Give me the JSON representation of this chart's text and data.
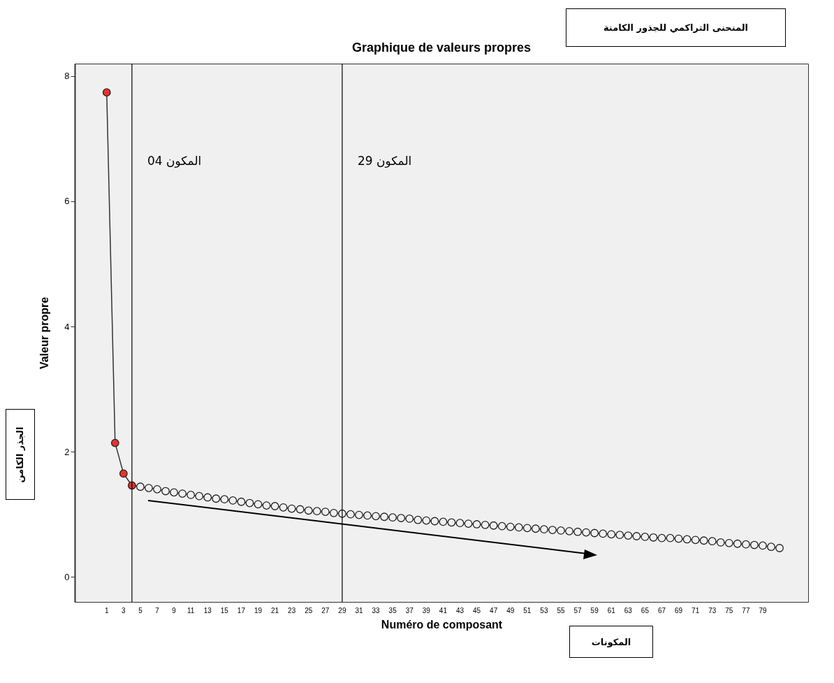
{
  "chart_data": {
    "type": "line",
    "title": "Graphique de valeurs propres",
    "xlabel": "Numéro de composant",
    "ylabel": "Valeur propre",
    "x": [
      1,
      2,
      3,
      4,
      5,
      6,
      7,
      8,
      9,
      10,
      11,
      12,
      13,
      14,
      15,
      16,
      17,
      18,
      19,
      20,
      21,
      22,
      23,
      24,
      25,
      26,
      27,
      28,
      29,
      30,
      31,
      32,
      33,
      34,
      35,
      36,
      37,
      38,
      39,
      40,
      41,
      42,
      43,
      44,
      45,
      46,
      47,
      48,
      49,
      50,
      51,
      52,
      53,
      54,
      55,
      56,
      57,
      58,
      59,
      60,
      61,
      62,
      63,
      64,
      65,
      66,
      67,
      68,
      69,
      70,
      71,
      72,
      73,
      74,
      75,
      76,
      77,
      78,
      79,
      80,
      81
    ],
    "series": [
      {
        "color": "#333333",
        "colors": [
          "#e8312a",
          "#e8312a",
          "#e8312a",
          "#e8312a",
          "#f0f0f0",
          "#f0f0f0",
          "#f0f0f0",
          "#f0f0f0",
          "#f0f0f0",
          "#f0f0f0",
          "#f0f0f0",
          "#f0f0f0",
          "#f0f0f0",
          "#f0f0f0",
          "#f0f0f0",
          "#f0f0f0",
          "#f0f0f0",
          "#f0f0f0",
          "#f0f0f0",
          "#f0f0f0",
          "#f0f0f0",
          "#f0f0f0",
          "#f0f0f0",
          "#f0f0f0",
          "#f0f0f0",
          "#f0f0f0",
          "#f0f0f0",
          "#f0f0f0",
          "#f0f0f0",
          "#f0f0f0",
          "#f0f0f0",
          "#f0f0f0",
          "#f0f0f0",
          "#f0f0f0",
          "#f0f0f0",
          "#f0f0f0",
          "#f0f0f0",
          "#f0f0f0",
          "#f0f0f0",
          "#f0f0f0",
          "#f0f0f0",
          "#f0f0f0",
          "#f0f0f0",
          "#f0f0f0",
          "#f0f0f0",
          "#f0f0f0",
          "#f0f0f0",
          "#f0f0f0",
          "#f0f0f0",
          "#f0f0f0",
          "#f0f0f0",
          "#f0f0f0",
          "#f0f0f0",
          "#f0f0f0",
          "#f0f0f0",
          "#f0f0f0",
          "#f0f0f0",
          "#f0f0f0",
          "#f0f0f0",
          "#f0f0f0",
          "#f0f0f0",
          "#f0f0f0",
          "#f0f0f0",
          "#f0f0f0",
          "#f0f0f0",
          "#f0f0f0",
          "#f0f0f0",
          "#f0f0f0",
          "#f0f0f0",
          "#f0f0f0",
          "#f0f0f0",
          "#f0f0f0",
          "#f0f0f0",
          "#f0f0f0",
          "#f0f0f0",
          "#f0f0f0",
          "#f0f0f0",
          "#f0f0f0",
          "#f0f0f0",
          "#f0f0f0",
          "#f0f0f0"
        ],
        "values": [
          7.74,
          2.14,
          1.65,
          1.46,
          1.44,
          1.42,
          1.4,
          1.37,
          1.35,
          1.33,
          1.31,
          1.29,
          1.27,
          1.25,
          1.24,
          1.22,
          1.2,
          1.18,
          1.16,
          1.14,
          1.13,
          1.11,
          1.09,
          1.08,
          1.06,
          1.05,
          1.04,
          1.02,
          1.01,
          1.0,
          0.99,
          0.98,
          0.97,
          0.96,
          0.95,
          0.94,
          0.93,
          0.91,
          0.9,
          0.89,
          0.88,
          0.87,
          0.86,
          0.85,
          0.84,
          0.83,
          0.82,
          0.81,
          0.8,
          0.79,
          0.78,
          0.77,
          0.76,
          0.75,
          0.74,
          0.73,
          0.72,
          0.71,
          0.7,
          0.69,
          0.68,
          0.67,
          0.66,
          0.65,
          0.64,
          0.63,
          0.62,
          0.62,
          0.61,
          0.6,
          0.59,
          0.58,
          0.57,
          0.55,
          0.54,
          0.53,
          0.52,
          0.51,
          0.5,
          0.48,
          0.46
        ]
      }
    ],
    "xlim": [
      -2.8,
      84.4
    ],
    "xticks": [
      1,
      3,
      5,
      7,
      9,
      11,
      13,
      15,
      17,
      19,
      21,
      23,
      25,
      27,
      29,
      31,
      33,
      35,
      37,
      39,
      41,
      43,
      45,
      47,
      49,
      51,
      53,
      55,
      57,
      59,
      61,
      63,
      65,
      67,
      69,
      71,
      73,
      75,
      77,
      79
    ],
    "ylim": [
      -0.4,
      8.2
    ],
    "yticks": [
      0,
      2,
      4,
      6,
      8
    ],
    "marker": "circle",
    "grid": false,
    "ref_lines": [
      {
        "axis": "x",
        "value": 4,
        "label": "المكون 04",
        "color": "#000000"
      },
      {
        "axis": "x",
        "value": 29,
        "label": "المكون 29",
        "color": "#000000"
      }
    ],
    "annotations": [
      "المنحنى التراكمي للجذور الكامنة",
      "المكونات",
      "الجذر الكامن"
    ]
  }
}
